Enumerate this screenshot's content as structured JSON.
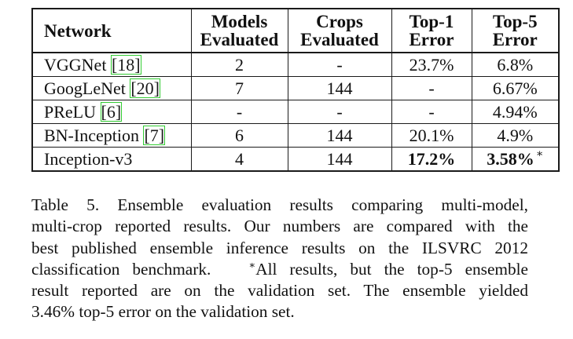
{
  "table": {
    "headers": {
      "network": "Network",
      "models_line1": "Models",
      "models_line2": "Evaluated",
      "crops_line1": "Crops",
      "crops_line2": "Evaluated",
      "top1_line1": "Top-1",
      "top1_line2": "Error",
      "top5_line1": "Top-5",
      "top5_line2": "Error"
    },
    "rows": [
      {
        "network": "VGGNet",
        "cite": "[18]",
        "models": "2",
        "crops": "-",
        "top1": "23.7%",
        "top5": "6.8%"
      },
      {
        "network": "GoogLeNet",
        "cite": "[20]",
        "models": "7",
        "crops": "144",
        "top1": "-",
        "top5": "6.67%"
      },
      {
        "network": "PReLU",
        "cite": "[6]",
        "models": "-",
        "crops": "-",
        "top1": "-",
        "top5": "4.94%"
      },
      {
        "network": "BN-Inception",
        "cite": "[7]",
        "models": "6",
        "crops": "144",
        "top1": "20.1%",
        "top5": "4.9%"
      },
      {
        "network": "Inception-v3",
        "cite": "",
        "models": "4",
        "crops": "144",
        "top1": "17.2%",
        "top5": "3.58%",
        "top5_mark": "∗"
      }
    ]
  },
  "caption": {
    "lines": [
      "Table 5. Ensemble evaluation results comparing multi-model,",
      "multi-crop reported results. Our numbers are compared with the",
      "best published ensemble inference results on the ILSVRC 2012",
      "classification benchmark.",
      "All results, but the top-5 ensemble",
      "result reported are on the validation set. The ensemble yielded",
      "3.46% top-5 error on the validation set."
    ],
    "star": "∗"
  }
}
